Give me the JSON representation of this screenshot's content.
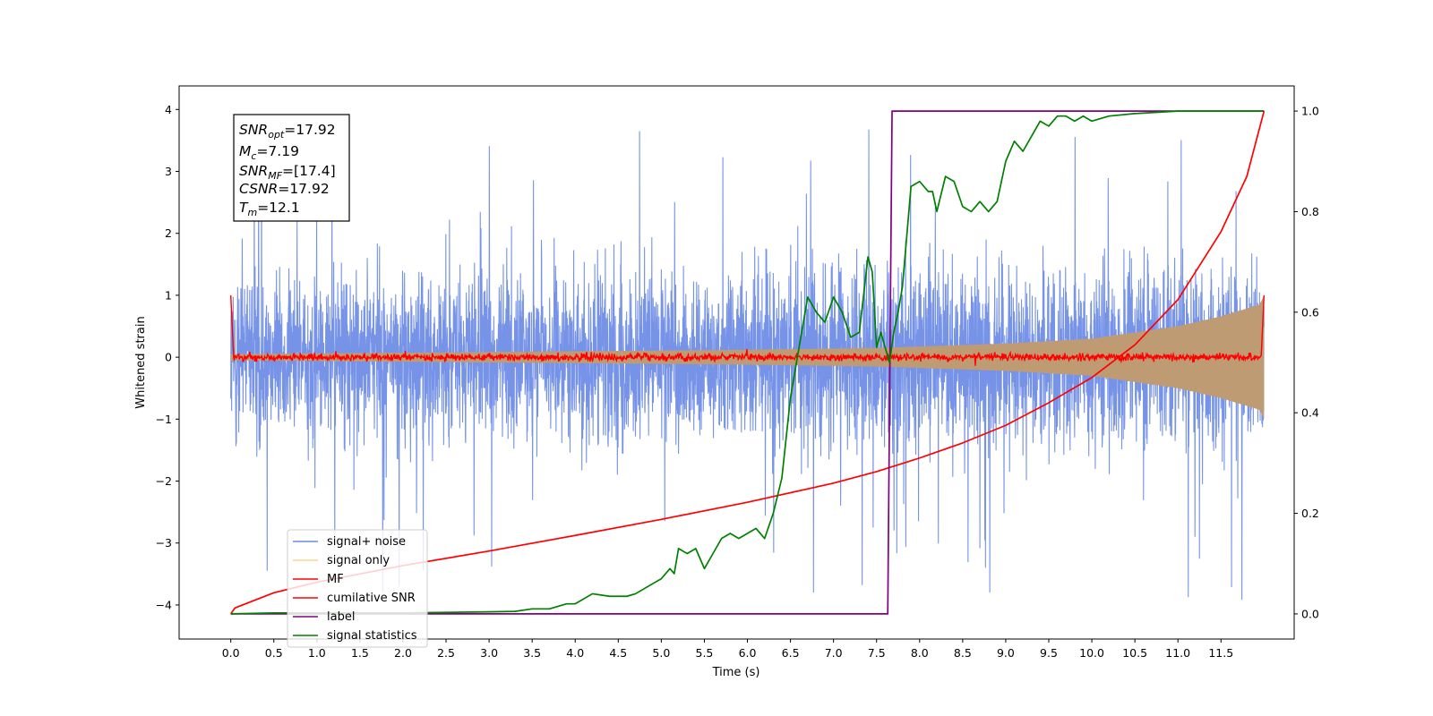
{
  "chart_data": {
    "type": "line",
    "xlabel": "Time (s)",
    "ylabel": "Whitened strain",
    "xlim": [
      -0.6,
      12.35
    ],
    "ylim": [
      -4.55,
      4.38
    ],
    "ylim_right": [
      -0.05,
      1.05
    ],
    "xticks": [
      "0.0",
      "0.5",
      "1.0",
      "1.5",
      "2.0",
      "2.5",
      "3.0",
      "3.5",
      "4.0",
      "4.5",
      "5.0",
      "5.5",
      "6.0",
      "6.5",
      "7.0",
      "7.5",
      "8.0",
      "8.5",
      "9.0",
      "9.5",
      "10.0",
      "10.5",
      "11.0",
      "11.5"
    ],
    "yticks": [
      "4",
      "3",
      "2",
      "1",
      "0",
      "−1",
      "−2",
      "−3",
      "−4"
    ],
    "yticks_right": [
      "1.0",
      "0.8",
      "0.6",
      "0.4",
      "0.2",
      "0.0"
    ],
    "grid": false,
    "legend_position": "lower-left",
    "annotation": {
      "lines": [
        {
          "sym": "SNR",
          "sub": "opt",
          "val": "=17.92"
        },
        {
          "sym": "M",
          "sub": "c",
          "val": "=7.19"
        },
        {
          "sym": "SNR",
          "sub": "MF",
          "val": "=[17.4]"
        },
        {
          "sym": "CSNR",
          "sub": "",
          "val": "=17.92"
        },
        {
          "sym": "T",
          "sub": "m",
          "val": "=12.1"
        }
      ]
    },
    "series": [
      {
        "name": "signal+ noise",
        "color": "#6a8ae6",
        "axis": "left",
        "style": "noise",
        "x_range": [
          0,
          12.0
        ],
        "envelope": [
          [
            0,
            1.6
          ],
          [
            6,
            1.7
          ],
          [
            12,
            1.9
          ]
        ],
        "spike_max": 4.0
      },
      {
        "name": "signal only",
        "color": "#fdd68a",
        "axis": "left",
        "style": "chirp",
        "envelope": [
          [
            0,
            0.05
          ],
          [
            6,
            0.12
          ],
          [
            7.5,
            0.15
          ],
          [
            9,
            0.22
          ],
          [
            10,
            0.3
          ],
          [
            11,
            0.5
          ],
          [
            11.5,
            0.66
          ],
          [
            11.95,
            0.85
          ],
          [
            12.0,
            1.0
          ]
        ]
      },
      {
        "name": "MF",
        "color": "#ff0000",
        "axis": "left",
        "style": "mf",
        "x_range": [
          0,
          12.0
        ],
        "start": 1.0,
        "noise_amp": 0.04
      },
      {
        "name": "cumilative SNR",
        "color": "#ff0000",
        "axis": "right",
        "x": [
          0,
          0.05,
          0.5,
          1,
          2,
          3,
          4,
          5,
          6,
          7,
          7.5,
          8,
          8.5,
          9,
          9.5,
          10,
          10.5,
          11,
          11.5,
          11.8,
          12.0
        ],
        "y": [
          0,
          0.012,
          0.042,
          0.063,
          0.096,
          0.125,
          0.156,
          0.188,
          0.222,
          0.26,
          0.283,
          0.31,
          0.34,
          0.375,
          0.42,
          0.47,
          0.535,
          0.625,
          0.76,
          0.87,
          1.0
        ]
      },
      {
        "name": "label",
        "color": "#800080",
        "axis": "right",
        "x": [
          0,
          7.63,
          7.68,
          12.0
        ],
        "y": [
          0,
          0,
          1,
          1
        ]
      },
      {
        "name": "signal statistics",
        "color": "#008000",
        "axis": "right",
        "x": [
          0,
          0.5,
          1,
          1.5,
          2,
          2.5,
          3,
          3.3,
          3.5,
          3.7,
          3.9,
          4.0,
          4.2,
          4.4,
          4.6,
          4.7,
          4.8,
          4.9,
          5.0,
          5.05,
          5.1,
          5.15,
          5.2,
          5.3,
          5.4,
          5.45,
          5.5,
          5.6,
          5.7,
          5.8,
          5.9,
          6.0,
          6.1,
          6.2,
          6.3,
          6.4,
          6.5,
          6.6,
          6.65,
          6.7,
          6.8,
          6.9,
          7.0,
          7.1,
          7.2,
          7.3,
          7.4,
          7.45,
          7.5,
          7.55,
          7.6,
          7.65,
          7.7,
          7.75,
          7.8,
          7.9,
          8.0,
          8.1,
          8.15,
          8.2,
          8.3,
          8.4,
          8.5,
          8.6,
          8.7,
          8.8,
          8.9,
          9.0,
          9.1,
          9.2,
          9.3,
          9.4,
          9.5,
          9.6,
          9.7,
          9.8,
          9.9,
          10.0,
          10.2,
          10.5,
          11.0,
          11.5,
          12.0
        ],
        "y": [
          0,
          0.002,
          0.002,
          0.002,
          0.002,
          0.003,
          0.004,
          0.005,
          0.01,
          0.01,
          0.02,
          0.02,
          0.04,
          0.035,
          0.035,
          0.04,
          0.05,
          0.06,
          0.07,
          0.08,
          0.09,
          0.08,
          0.13,
          0.12,
          0.13,
          0.11,
          0.09,
          0.12,
          0.15,
          0.16,
          0.15,
          0.16,
          0.17,
          0.15,
          0.2,
          0.27,
          0.43,
          0.53,
          0.58,
          0.63,
          0.6,
          0.58,
          0.63,
          0.6,
          0.55,
          0.56,
          0.71,
          0.68,
          0.53,
          0.56,
          0.53,
          0.5,
          0.56,
          0.6,
          0.65,
          0.85,
          0.86,
          0.84,
          0.84,
          0.8,
          0.87,
          0.86,
          0.81,
          0.8,
          0.82,
          0.8,
          0.82,
          0.9,
          0.94,
          0.92,
          0.95,
          0.98,
          0.97,
          0.99,
          0.99,
          0.98,
          0.99,
          0.98,
          0.99,
          0.995,
          1.0,
          1.0,
          1.0
        ]
      }
    ]
  }
}
